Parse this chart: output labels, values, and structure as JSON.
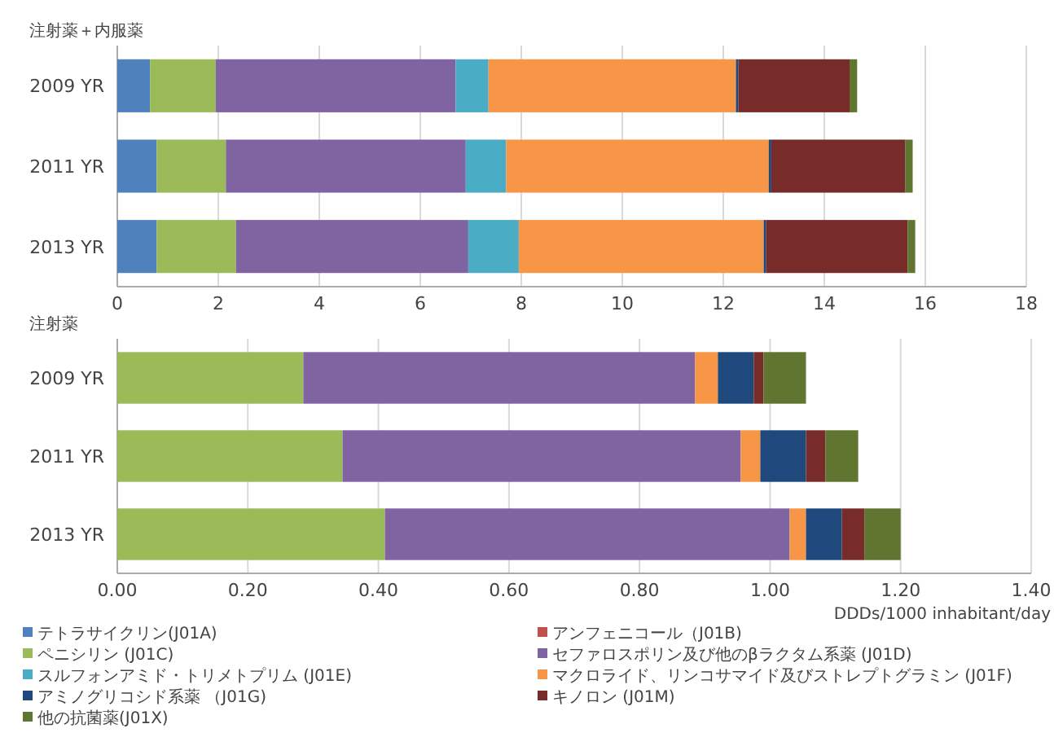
{
  "chart_data": [
    {
      "type": "bar",
      "orientation": "horizontal",
      "stacked": true,
      "title": "注射薬＋内服薬",
      "categories": [
        "2009 YR",
        "2011 YR",
        "2013 YR"
      ],
      "xlim": [
        0,
        18
      ],
      "xticks": [
        0,
        2,
        4,
        6,
        8,
        10,
        12,
        14,
        16,
        18
      ],
      "grid": "x",
      "legend": false,
      "series": [
        {
          "color": "#4f81bd",
          "values": [
            0.65,
            0.78,
            0.78
          ]
        },
        {
          "color": "#c0504d",
          "values": [
            0,
            0,
            0
          ]
        },
        {
          "color": "#9bbb59",
          "values": [
            1.3,
            1.37,
            1.57
          ]
        },
        {
          "color": "#8064a2",
          "values": [
            4.75,
            4.75,
            4.6
          ]
        },
        {
          "color": "#4bacc6",
          "values": [
            0.65,
            0.8,
            1.0
          ]
        },
        {
          "color": "#f79646",
          "values": [
            4.9,
            5.2,
            4.85
          ]
        },
        {
          "color": "#1f497d",
          "values": [
            0.05,
            0.05,
            0.05
          ]
        },
        {
          "color": "#772c2a",
          "values": [
            2.2,
            2.65,
            2.8
          ]
        },
        {
          "color": "#5f7530",
          "values": [
            0.15,
            0.15,
            0.15
          ]
        }
      ]
    },
    {
      "type": "bar",
      "orientation": "horizontal",
      "stacked": true,
      "title": "注射薬",
      "xlabel": "DDDs/1000 inhabitant/day",
      "categories": [
        "2009 YR",
        "2011 YR",
        "2013 YR"
      ],
      "xlim": [
        0,
        1.4
      ],
      "xticks": [
        {
          "value": 0,
          "label": "0.00"
        },
        {
          "value": 0.2,
          "label": "0.20"
        },
        {
          "value": 0.4,
          "label": "0.40"
        },
        {
          "value": 0.6,
          "label": "0.60"
        },
        {
          "value": 0.8,
          "label": "0.80"
        },
        {
          "value": 1,
          "label": "1.00"
        },
        {
          "value": 1.2,
          "label": "1.20"
        },
        {
          "value": 1.4,
          "label": "1.40"
        }
      ],
      "grid": "x",
      "legend": "bottom",
      "series": [
        {
          "name": "テトラサイクリン(J01A)",
          "color": "#4f81bd",
          "values": [
            0,
            0,
            0
          ]
        },
        {
          "name": "アンフェニコール（J01B)",
          "color": "#c0504d",
          "values": [
            0,
            0,
            0
          ]
        },
        {
          "name": "ペニシリン (J01C)",
          "color": "#9bbb59",
          "values": [
            0.285,
            0.345,
            0.41
          ]
        },
        {
          "name": "セファロスポリン及び他のβラクタム系薬 (J01D)",
          "color": "#8064a2",
          "values": [
            0.6,
            0.61,
            0.62
          ]
        },
        {
          "name": "スルフォンアミド・トリメトプリム (J01E)",
          "color": "#4bacc6",
          "values": [
            0,
            0,
            0
          ]
        },
        {
          "name": "マクロライド、リンコサマイド及びストレプトグラミン (J01F)",
          "color": "#f79646",
          "values": [
            0.035,
            0.03,
            0.025
          ]
        },
        {
          "name": "アミノグリコシド系薬 （J01G)",
          "color": "#1f497d",
          "values": [
            0.055,
            0.07,
            0.055
          ]
        },
        {
          "name": "キノロン (J01M)",
          "color": "#772c2a",
          "values": [
            0.015,
            0.03,
            0.035
          ]
        },
        {
          "name": "他の抗菌薬(J01X)",
          "color": "#5f7530",
          "values": [
            0.065,
            0.05,
            0.055
          ]
        }
      ]
    }
  ]
}
